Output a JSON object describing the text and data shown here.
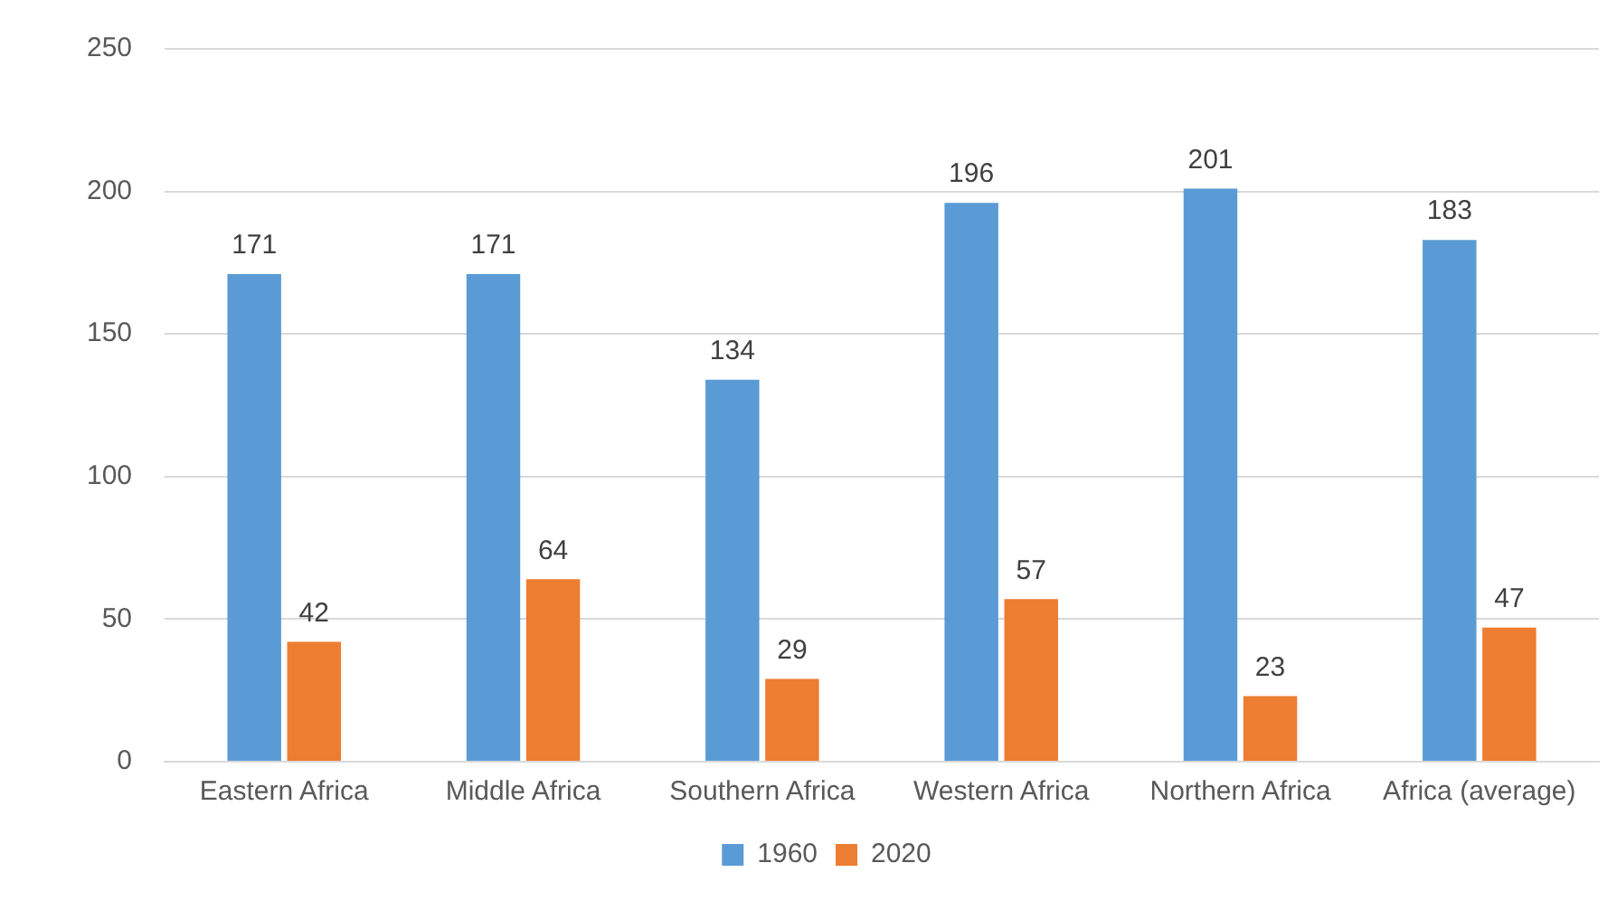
{
  "chart_data": {
    "type": "bar",
    "categories": [
      "Eastern Africa",
      "Middle Africa",
      "Southern Africa",
      "Western Africa",
      "Northern Africa",
      "Africa (average)"
    ],
    "series": [
      {
        "name": "1960",
        "color": "#5b9bd5",
        "values": [
          171,
          171,
          134,
          196,
          201,
          183
        ]
      },
      {
        "name": "2020",
        "color": "#ed7d31",
        "values": [
          42,
          64,
          29,
          57,
          23,
          47
        ]
      }
    ],
    "ylim": [
      0,
      250
    ],
    "yticks": [
      0,
      50,
      100,
      150,
      200,
      250
    ],
    "grid": "y",
    "legend": "bottom",
    "data_labels": true
  }
}
